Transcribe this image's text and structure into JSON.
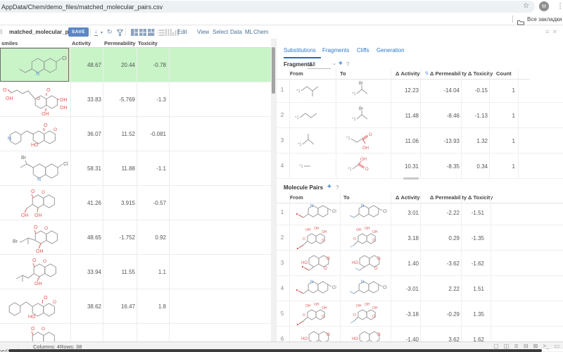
{
  "browser": {
    "url": "AppData/Chem/demo_files/matched_molecular_pairs.csv",
    "star_icon": "bookmark-star",
    "avatar_letter": "M",
    "bookmarks_label": "Все закладки"
  },
  "toolbar": {
    "table_name": "matched_molecular_pairs",
    "save_label": "SAVE",
    "icons": [
      "download-icon",
      "dropdown-caret-icon",
      "refresh-icon",
      "filter-icon",
      "layout-split-left-icon",
      "layout-grid-icon",
      "layout-split-bottom-icon",
      "rows-icon",
      "columns-icon",
      "histogram-icon"
    ],
    "menus": [
      "Edit",
      "View",
      "Select",
      "Data",
      "ML",
      "Chem"
    ],
    "window_icons": [
      "hamburger-icon",
      "close-icon"
    ]
  },
  "grid": {
    "columns": [
      "smiles",
      "Activity",
      "Permeability",
      "Toxicity"
    ],
    "rows": [
      {
        "mol": "mol-quinoline-cl-ethyl",
        "activity": "48.67",
        "permeability": "20.44",
        "toxicity": "-0.78",
        "selected": true
      },
      {
        "mol": "mol-chromone-polyol",
        "activity": "33.83",
        "permeability": "-5.769",
        "toxicity": "-1.3",
        "selected": false
      },
      {
        "mol": "mol-pyridyl-coumarin",
        "activity": "36.07",
        "permeability": "11.52",
        "toxicity": "-0.081",
        "selected": false
      },
      {
        "mol": "mol-quinoline-cl-br",
        "activity": "58.31",
        "permeability": "11.88",
        "toxicity": "-1.1",
        "selected": false
      },
      {
        "mol": "mol-coumarin-diol",
        "activity": "41.26",
        "permeability": "3.915",
        "toxicity": "-0.57",
        "selected": false
      },
      {
        "mol": "mol-coumarin-bromo",
        "activity": "48.65",
        "permeability": "-1.752",
        "toxicity": "0.92",
        "selected": false
      },
      {
        "mol": "mol-coumarin-isobutyl",
        "activity": "33.94",
        "permeability": "11.55",
        "toxicity": "1.1",
        "selected": false
      },
      {
        "mol": "mol-coumarin-benzyl",
        "activity": "38.62",
        "permeability": "16.47",
        "toxicity": "1.8",
        "selected": false
      },
      {
        "mol": "mol-coumarin-partial",
        "activity": "",
        "permeability": "",
        "toxicity": "",
        "selected": false
      }
    ]
  },
  "panel": {
    "tabs": [
      {
        "label": "Substitutions",
        "active": true
      },
      {
        "label": "Fragments",
        "active": false
      },
      {
        "label": "Cliffs",
        "active": false
      },
      {
        "label": "Generation",
        "active": false
      }
    ],
    "fragments": {
      "label": "Fragments",
      "filter_value": "All",
      "add_label": "+",
      "help_label": "?",
      "columns": [
        "From",
        "To",
        "Δ Activity",
        "Δ Permeability",
        "Δ Toxicity",
        "Count"
      ],
      "rows": [
        {
          "n": "1",
          "from": "frag-isobutyl",
          "to": "frag-bromoethyl",
          "activity": "12.23",
          "permeability": "-14.04",
          "toxicity": "-0.15",
          "count": "1"
        },
        {
          "n": "2",
          "from": "frag-propyl",
          "to": "frag-bromoethyl",
          "activity": "11.48",
          "permeability": "-8.46",
          "toxicity": "-1.13",
          "count": "1"
        },
        {
          "n": "3",
          "from": "frag-isopropyl",
          "to": "frag-acetic",
          "activity": "11.06",
          "permeability": "-13.93",
          "toxicity": "1.32",
          "count": "1"
        },
        {
          "n": "4",
          "from": "frag-methyl",
          "to": "frag-formic",
          "activity": "10.31",
          "permeability": "-8.35",
          "toxicity": "0.34",
          "count": "1"
        }
      ]
    },
    "pairs": {
      "label": "Molecule Pairs",
      "add_label": "+",
      "help_label": "?",
      "columns": [
        "From",
        "To",
        "Δ Activity",
        "Δ Permeability",
        "Δ Toxicity"
      ],
      "rows": [
        {
          "n": "1",
          "from": "pair-quinoline-red",
          "to": "pair-quinoline-blue",
          "activity": "3.01",
          "permeability": "-2.22",
          "toxicity": "-1.51"
        },
        {
          "n": "2",
          "from": "pair-chromone-red",
          "to": "pair-chromone-blue",
          "activity": "3.18",
          "permeability": "0.29",
          "toxicity": "-1.35"
        },
        {
          "n": "3",
          "from": "pair-coumarin-red",
          "to": "pair-coumarin-blue",
          "activity": "1.40",
          "permeability": "-3.62",
          "toxicity": "-1.62"
        },
        {
          "n": "4",
          "from": "pair-quinoline-red",
          "to": "pair-quinoline-blue",
          "activity": "-3.01",
          "permeability": "2.22",
          "toxicity": "1.51"
        },
        {
          "n": "5",
          "from": "pair-chromone-red",
          "to": "pair-chromone-blue",
          "activity": "-3.18",
          "permeability": "-0.29",
          "toxicity": "1.35"
        },
        {
          "n": "6",
          "from": "pair-coumarin-red",
          "to": "pair-coumarin-blue",
          "activity": "-1.40",
          "permeability": "3.62",
          "toxicity": "1.62"
        }
      ]
    }
  },
  "statusbar": {
    "table_name": "matched_molecule",
    "columns_label": "Columns: 4",
    "rows_label": "Rows: 38",
    "icons": [
      "window-icon",
      "split-view-icon",
      "list-icon",
      "panel-icon",
      "close-cell-icon",
      "console-icon",
      "screen-icon"
    ],
    "icon_glyphs": [
      "▢",
      "◫",
      "≣",
      "⊟",
      "⊠",
      ">_",
      "▭"
    ]
  },
  "colors": {
    "selected_row": "#c8f4c8",
    "accent_blue": "#2d7ac8",
    "save_button": "#5b87c5",
    "atom_red": "#e25b5b",
    "atom_blue": "#5b8dd6"
  }
}
